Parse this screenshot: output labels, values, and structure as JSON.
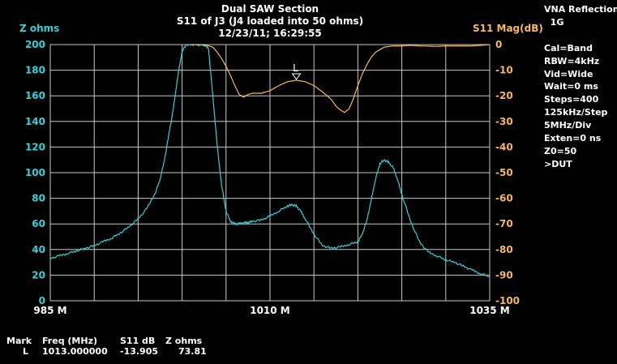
{
  "header": {
    "title": "Dual SAW Section",
    "subtitle": "S11 of J3 (J4 loaded into 50 ohms)",
    "timestamp": "12/23/11; 16:29:55"
  },
  "side_panel": {
    "lines": [
      "VNA Reflection",
      "  1G",
      "",
      "Cal=Band",
      "RBW=4kHz",
      "Vid=Wide",
      "Wait=0 ms",
      "Steps=400",
      "125kHz/Step",
      "5MHz/Div",
      "Exten=0 ns",
      "Z0=50",
      ">DUT"
    ]
  },
  "marker_table": {
    "headers": [
      "Mark",
      "Freq (MHz)",
      "S11 dB",
      "Z ohms"
    ],
    "row": [
      "L",
      "1013.000000",
      "-13.905",
      "73.81"
    ]
  },
  "colors": {
    "cyan": "#33d0d8",
    "orange": "#f5b860",
    "grid": "#c8c8c8",
    "background": "#000000"
  },
  "chart_data": {
    "type": "line",
    "xlabel": "",
    "x_ticks": [
      "985 M",
      "1010 M",
      "1035 M"
    ],
    "xlim": [
      985,
      1035
    ],
    "left_axis": {
      "label": "Z ohms",
      "ylim": [
        0,
        200
      ],
      "ticks": [
        0,
        20,
        40,
        60,
        80,
        100,
        120,
        140,
        160,
        180,
        200
      ]
    },
    "right_axis": {
      "label": "S11 Mag(dB)",
      "ylim": [
        -100,
        0
      ],
      "ticks": [
        0,
        -10,
        -20,
        -30,
        -40,
        -50,
        -60,
        -70,
        -80,
        -90,
        -100
      ]
    },
    "grid": true,
    "marker": {
      "label": "L",
      "x": 1013,
      "y_db": -13.905
    },
    "series": [
      {
        "name": "Z ohms",
        "axis": "left",
        "color": "#33d0d8",
        "x": [
          985,
          986,
          987,
          988,
          989,
          990,
          991,
          992,
          993,
          994,
          995,
          996,
          997,
          997.5,
          998,
          998.5,
          999,
          999.5,
          1000,
          1000.5,
          1001,
          1001.5,
          1002,
          1002.5,
          1003,
          1003.5,
          1004,
          1004.5,
          1005,
          1005.5,
          1006,
          1006.5,
          1007,
          1007.5,
          1008,
          1009,
          1010,
          1011,
          1012,
          1012.5,
          1013,
          1013.5,
          1014,
          1015,
          1016,
          1017,
          1018,
          1019,
          1020,
          1020.5,
          1021,
          1021.5,
          1022,
          1022.5,
          1023,
          1023.5,
          1024,
          1024.5,
          1025,
          1026,
          1027,
          1028,
          1029,
          1030,
          1031,
          1032,
          1033,
          1034,
          1035
        ],
        "y": [
          33,
          35,
          37,
          39,
          41,
          43,
          46,
          49,
          53,
          58,
          64,
          72,
          85,
          95,
          110,
          130,
          150,
          175,
          195,
          200,
          200,
          200,
          200,
          200,
          197,
          160,
          120,
          90,
          70,
          62,
          60,
          60,
          61,
          61,
          62,
          63,
          66,
          70,
          74,
          75,
          74,
          70,
          64,
          52,
          43,
          41,
          42,
          44,
          46,
          52,
          62,
          78,
          95,
          107,
          110,
          108,
          104,
          95,
          83,
          62,
          46,
          38,
          35,
          32,
          30,
          27,
          24,
          21,
          19
        ]
      },
      {
        "name": "S11 Mag(dB)",
        "axis": "right",
        "color": "#f5b860",
        "x": [
          1001,
          1002,
          1003,
          1003.5,
          1004,
          1004.5,
          1005,
          1005.5,
          1006,
          1006.5,
          1007,
          1007.5,
          1008,
          1009,
          1010,
          1011,
          1012,
          1013,
          1014,
          1015,
          1016,
          1017,
          1017.5,
          1018,
          1018.5,
          1019,
          1019.5,
          1020,
          1020.5,
          1021,
          1021.5,
          1022,
          1022.5,
          1023,
          1024,
          1025,
          1026,
          1027,
          1028,
          1029,
          1030,
          1031,
          1032,
          1033,
          1034,
          1035
        ],
        "y": [
          0,
          0,
          -0.5,
          -1,
          -3,
          -5.5,
          -8.5,
          -12,
          -16,
          -19.5,
          -20.5,
          -19.5,
          -19,
          -19,
          -18,
          -16,
          -14.5,
          -13.9,
          -14.5,
          -16,
          -18.5,
          -21.5,
          -24,
          -25.5,
          -26.5,
          -25,
          -21,
          -16,
          -11.5,
          -8,
          -5,
          -3,
          -2,
          -1,
          -0.5,
          -0.5,
          -0.3,
          -0.5,
          -0.6,
          -0.7,
          -0.5,
          -0.5,
          -0.5,
          -0.5,
          -0.3,
          0
        ]
      }
    ]
  }
}
